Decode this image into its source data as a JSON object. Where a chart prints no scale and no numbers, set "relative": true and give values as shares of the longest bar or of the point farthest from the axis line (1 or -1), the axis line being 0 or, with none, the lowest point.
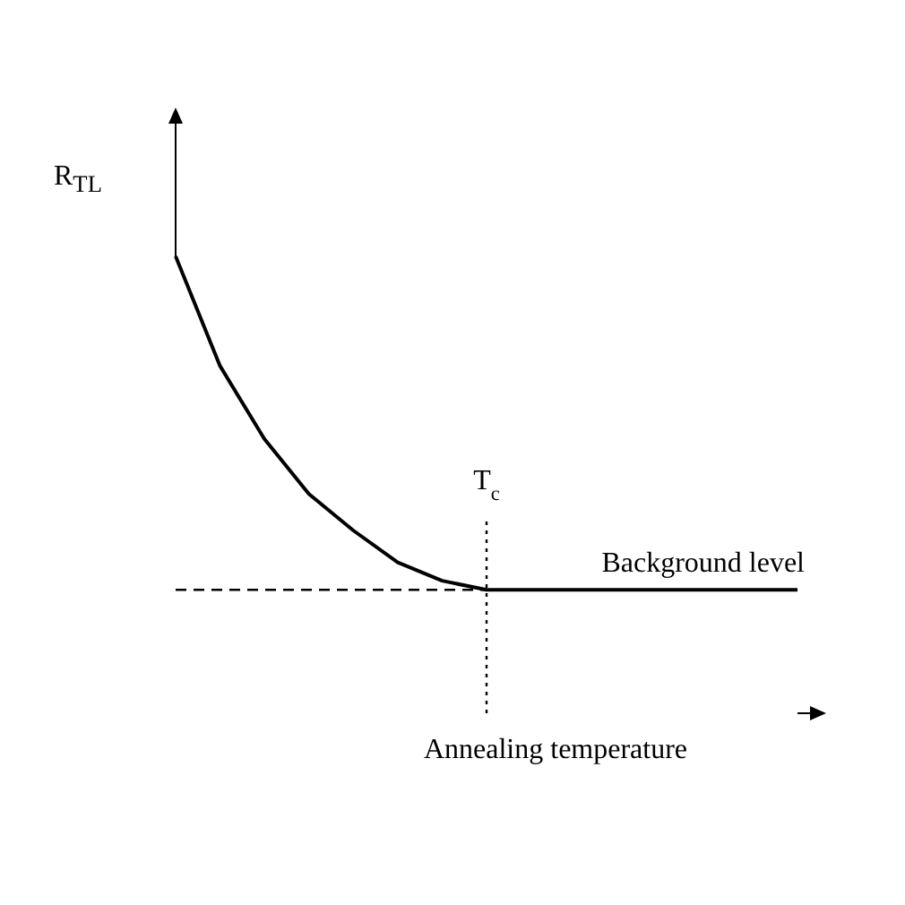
{
  "chart_data": {
    "type": "line",
    "relative": true,
    "ylabel": "R$_{TL}$",
    "xlabel": "Annealing temperature",
    "categories": [
      null,
      null,
      null,
      null,
      null,
      null,
      null,
      null,
      null,
      null,
      null,
      null,
      null,
      null,
      null
    ],
    "series": [
      {
        "color": "#000000",
        "values": [
          1,
          0.76,
          0.6,
          0.48,
          0.4,
          0.33,
          0.29,
          0.27,
          0.27,
          0.27,
          0.27,
          0.27,
          0.27,
          0.27,
          0.27
        ]
      }
    ],
    "ref_lines": [
      {
        "axis": "y",
        "value": 0.27,
        "label": "Background level",
        "line_style": "dashed",
        "color": "#000000"
      }
    ],
    "annotations": [
      "T$_{c}$"
    ],
    "marker": "none",
    "line_style": "solid"
  }
}
